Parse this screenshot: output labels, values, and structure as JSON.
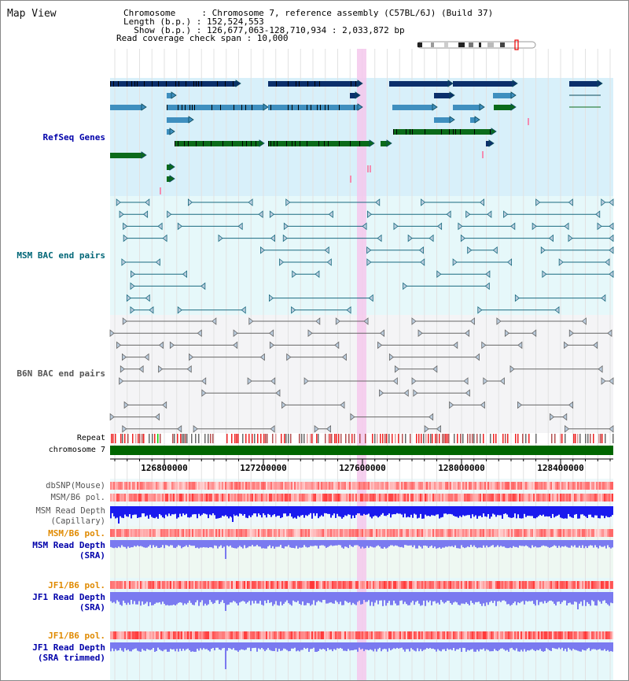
{
  "title": "Map View",
  "info": {
    "chromosome": "Chromosome     : Chromosome 7, reference assembly (C57BL/6J) (Build 37)",
    "length": "Length (b.p.) : 152,524,553",
    "show": "  Show (b.p.) : 126,677,063-128,710,934 : 2,033,872 bp",
    "coverage": "Read coverage check span : 10,000"
  },
  "labels": {
    "refseq": "RefSeq Genes",
    "msm_bac": "MSM BAC end pairs",
    "b6n_bac": "B6N BAC end pairs",
    "repeat": "Repeat",
    "chromosome": "chromosome 7",
    "dbsnp": "dbSNP(Mouse)",
    "msm_b6_pol_1": "MSM/B6 pol.",
    "msm_depth_cap_1": "MSM Read Depth",
    "msm_depth_cap_2": "(Capillary)",
    "msm_b6_pol_2": "MSM/B6 pol.",
    "msm_depth_sra_1": "MSM Read Depth",
    "msm_depth_sra_2": "(SRA)",
    "jf1_b6_pol_1": "JF1/B6 pol.",
    "jf1_depth_sra_1": "JF1 Read Depth",
    "jf1_depth_sra_2": "(SRA)",
    "jf1_b6_pol_2": "JF1/B6 pol.",
    "jf1_depth_trim_1": "JF1 Read Depth",
    "jf1_depth_trim_2": "(SRA trimmed)"
  },
  "axis_ticks": [
    "126800000",
    "127200000",
    "127600000",
    "128000000",
    "128400000"
  ],
  "colors": {
    "refseq_label": "#0000aa",
    "msm_bac_label": "#006677",
    "b6n_label": "#555555",
    "orange_label": "#e08a00",
    "blue_label": "#0000aa",
    "highlight": "#f4c8ec",
    "refseq_bg": "#d8f0fa",
    "msm_bg": "#e6f8fa",
    "b6n_bg": "#f4f4f6",
    "chrom_bar": "#006600",
    "depth_dark": "#1a1aee",
    "depth_light": "#7a7af0"
  }
}
